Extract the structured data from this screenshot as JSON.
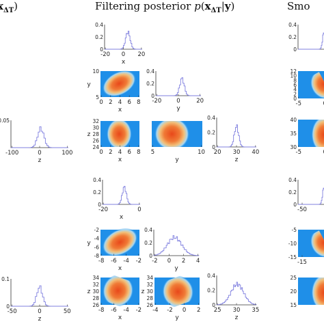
{
  "titles": {
    "left_fragment": {
      "main": "x",
      "sub": "ΔT",
      "close": ")"
    },
    "middle": {
      "prefix": "Filtering posterior ",
      "p": "p",
      "open": "(",
      "x": "x",
      "sub": "ΔT",
      "bar": "|",
      "y": "y",
      "close": ")"
    },
    "right_fragment": "Smo"
  },
  "colors": {
    "histogram": "#7f7fdf",
    "heatmap_bg": "#1f8fe8",
    "heatmap_mid": "#f2c07a",
    "heatmap_core": "#e8481a",
    "axis": "#333333"
  },
  "chart_data": [
    {
      "id": "L1-z",
      "type": "bar",
      "ylim": [
        0,
        0.05
      ],
      "yticks": [
        "",
        "0.05"
      ],
      "xticks": [
        "-100",
        "0",
        "100"
      ],
      "xlabel": "z",
      "ylabel": ""
    },
    {
      "id": "L2-z",
      "type": "bar",
      "ylim": [
        0,
        0.1
      ],
      "yticks": [
        "0",
        "0.1"
      ],
      "xticks": [
        "-50",
        "0",
        "50"
      ],
      "xlabel": "z",
      "ylabel": ""
    },
    {
      "id": "F1-x",
      "type": "bar",
      "ylim": [
        0,
        0.4
      ],
      "yticks": [
        "0",
        "0.2",
        "0.4"
      ],
      "xticks": [
        "-20",
        "0",
        "20"
      ],
      "xlabel": "x",
      "ylabel": ""
    },
    {
      "id": "F1-xy",
      "type": "heatmap",
      "xticks": [
        "0",
        "2",
        "4",
        "6",
        "8"
      ],
      "yticks": [
        "5",
        "10"
      ],
      "xlabel": "x",
      "ylabel": "y"
    },
    {
      "id": "F1-y",
      "type": "bar",
      "ylim": [
        0,
        0.4
      ],
      "yticks": [
        "0",
        "0.2",
        "0.4"
      ],
      "xticks": [
        "-20",
        "0",
        "20"
      ],
      "xlabel": "y",
      "ylabel": ""
    },
    {
      "id": "F1-xz",
      "type": "heatmap",
      "xticks": [
        "0",
        "2",
        "4",
        "6",
        "8"
      ],
      "yticks": [
        "24",
        "26",
        "28",
        "30",
        "32"
      ],
      "xlabel": "x",
      "ylabel": "z"
    },
    {
      "id": "F1-yz",
      "type": "heatmap",
      "xticks": [
        "5",
        "10"
      ],
      "yticks": [],
      "xlabel": "y",
      "ylabel": ""
    },
    {
      "id": "F1-z",
      "type": "bar",
      "ylim": [
        0,
        0.4
      ],
      "yticks": [
        "0",
        "0.2",
        "0.4"
      ],
      "xticks": [
        "20",
        "30",
        "40"
      ],
      "xlabel": "z",
      "ylabel": ""
    },
    {
      "id": "F2-x",
      "type": "bar",
      "ylim": [
        0,
        0.4
      ],
      "yticks": [
        "0",
        "0.2",
        "0.4"
      ],
      "xticks": [
        "-20",
        "0"
      ],
      "xlabel": "x",
      "ylabel": ""
    },
    {
      "id": "F2-xy",
      "type": "heatmap",
      "xticks": [
        "-8",
        "-6",
        "-4",
        "-2"
      ],
      "yticks": [
        "-8",
        "-6",
        "-4",
        "-2"
      ],
      "xlabel": "x",
      "ylabel": "y"
    },
    {
      "id": "F2-y",
      "type": "bar",
      "ylim": [
        0,
        0.4
      ],
      "yticks": [
        "0",
        "0.2",
        "0.4"
      ],
      "xticks": [
        "-2",
        "0",
        "2",
        "4"
      ],
      "xlabel": "y",
      "ylabel": ""
    },
    {
      "id": "F2-xz",
      "type": "heatmap",
      "xticks": [
        "-8",
        "-6",
        "-4",
        "-2"
      ],
      "yticks": [
        "26",
        "28",
        "30",
        "32",
        "34"
      ],
      "xlabel": "x",
      "ylabel": "z"
    },
    {
      "id": "F2-yz",
      "type": "heatmap",
      "xticks": [
        "-4",
        "-2",
        "0",
        "2"
      ],
      "yticks": [
        "26",
        "28",
        "30",
        "32",
        "34"
      ],
      "xlabel": "y",
      "ylabel": "z"
    },
    {
      "id": "F2-z",
      "type": "bar",
      "ylim": [
        0,
        0.4
      ],
      "yticks": [
        "0",
        "0.2",
        "0.4"
      ],
      "xticks": [
        "25",
        "30",
        "35"
      ],
      "xlabel": "z",
      "ylabel": ""
    },
    {
      "id": "S1-x",
      "type": "bar",
      "ylim": [
        0,
        0.4
      ],
      "yticks": [
        "0",
        "0.2",
        "0.4"
      ],
      "xticks": [],
      "xlabel": "",
      "ylabel": ""
    },
    {
      "id": "S1-xy",
      "type": "heatmap",
      "xticks": [
        "-5",
        "0"
      ],
      "yticks": [
        "0",
        "2",
        "4",
        "6",
        "8",
        "10",
        "12"
      ],
      "xlabel": "",
      "ylabel": ""
    },
    {
      "id": "S1-xz",
      "type": "heatmap",
      "xticks": [
        "-5",
        "0"
      ],
      "yticks": [
        "30",
        "35",
        "40"
      ],
      "xlabel": "",
      "ylabel": ""
    },
    {
      "id": "S2-x",
      "type": "bar",
      "ylim": [
        0,
        0.4
      ],
      "yticks": [
        "0",
        "0.2",
        "0.4"
      ],
      "xticks": [
        "-50"
      ],
      "xlabel": "",
      "ylabel": ""
    },
    {
      "id": "S2-xy",
      "type": "heatmap",
      "xticks": [
        "-15"
      ],
      "yticks": [
        "-15",
        "-10",
        "-5"
      ],
      "xlabel": "",
      "ylabel": ""
    },
    {
      "id": "S2-xz",
      "type": "heatmap",
      "xticks": [],
      "yticks": [
        "15",
        "20",
        "25"
      ],
      "xlabel": "",
      "ylabel": ""
    }
  ]
}
